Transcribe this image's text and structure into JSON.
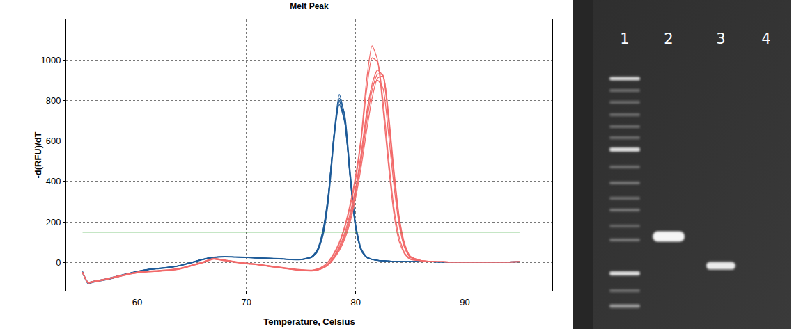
{
  "chart_data": {
    "type": "line",
    "title": "Melt Peak",
    "x_label": "Temperature, Celsius",
    "y_label": "-d(RFU)/dT",
    "x": [
      55,
      55.5,
      56,
      57,
      58,
      59,
      60,
      61,
      62,
      63,
      64,
      65,
      66,
      67,
      68,
      69,
      70,
      71,
      72,
      73,
      74,
      75,
      76,
      76.5,
      77,
      77.5,
      78,
      78.5,
      79,
      79.5,
      80,
      80.5,
      81,
      81.5,
      82,
      82.5,
      83,
      83.5,
      84,
      84.5,
      85,
      86,
      87,
      88,
      89,
      90,
      91,
      92,
      93,
      94,
      95
    ],
    "series": [
      {
        "color": "#1f5c99",
        "values": [
          -45,
          -100,
          -95,
          -85,
          -72,
          -58,
          -45,
          -35,
          -30,
          -24,
          -15,
          0,
          15,
          25,
          28,
          26,
          25,
          22,
          20,
          18,
          15,
          14,
          28,
          60,
          150,
          330,
          620,
          800,
          700,
          420,
          170,
          60,
          25,
          15,
          10,
          8,
          6,
          5,
          5,
          4,
          4,
          3,
          3,
          2,
          2,
          2,
          2,
          2,
          2,
          2,
          3
        ]
      },
      {
        "color": "#1f5c99",
        "values": [
          -50,
          -105,
          -98,
          -88,
          -75,
          -60,
          -47,
          -37,
          -31,
          -25,
          -16,
          -2,
          13,
          24,
          27,
          26,
          24,
          21,
          19,
          17,
          14,
          13,
          25,
          55,
          140,
          320,
          630,
          830,
          720,
          430,
          175,
          62,
          26,
          15,
          10,
          8,
          6,
          5,
          5,
          4,
          4,
          3,
          3,
          2,
          2,
          2,
          2,
          2,
          2,
          2,
          3
        ]
      },
      {
        "color": "#1f5c99",
        "values": [
          -48,
          -98,
          -93,
          -83,
          -70,
          -56,
          -44,
          -34,
          -29,
          -23,
          -14,
          1,
          16,
          26,
          29,
          27,
          26,
          23,
          21,
          19,
          16,
          15,
          30,
          65,
          160,
          340,
          610,
          780,
          690,
          410,
          165,
          58,
          24,
          14,
          10,
          8,
          6,
          5,
          5,
          4,
          4,
          3,
          3,
          2,
          2,
          2,
          2,
          2,
          2,
          2,
          3
        ]
      },
      {
        "color": "#1f5c99",
        "values": [
          -52,
          -102,
          -96,
          -86,
          -74,
          -59,
          -46,
          -36,
          -30,
          -24,
          -15,
          0,
          14,
          25,
          28,
          27,
          25,
          22,
          20,
          18,
          15,
          14,
          26,
          52,
          130,
          300,
          590,
          810,
          730,
          450,
          190,
          70,
          28,
          16,
          11,
          8,
          6,
          5,
          5,
          4,
          4,
          3,
          3,
          2,
          2,
          2,
          2,
          2,
          2,
          2,
          3
        ]
      },
      {
        "color": "#1f5c99",
        "values": [
          -47,
          -99,
          -94,
          -84,
          -71,
          -57,
          -44,
          -35,
          -29,
          -23,
          -14,
          1,
          15,
          25,
          28,
          26,
          25,
          22,
          20,
          18,
          15,
          14,
          29,
          62,
          155,
          335,
          625,
          795,
          695,
          415,
          168,
          59,
          25,
          15,
          10,
          8,
          6,
          5,
          5,
          4,
          4,
          3,
          3,
          2,
          2,
          2,
          2,
          2,
          2,
          2,
          3
        ]
      },
      {
        "color": "#f26b6b",
        "values": [
          -50,
          -100,
          -95,
          -85,
          -72,
          -60,
          -50,
          -45,
          -42,
          -38,
          -30,
          -15,
          0,
          18,
          10,
          2,
          -5,
          -10,
          -18,
          -25,
          -32,
          -38,
          -40,
          -33,
          -20,
          5,
          45,
          100,
          180,
          290,
          430,
          620,
          900,
          1070,
          1000,
          760,
          480,
          240,
          100,
          40,
          15,
          8,
          4,
          3,
          2,
          2,
          2,
          2,
          2,
          2,
          3
        ]
      },
      {
        "color": "#f26b6b",
        "values": [
          -48,
          -98,
          -93,
          -83,
          -70,
          -58,
          -48,
          -43,
          -40,
          -36,
          -28,
          -13,
          2,
          20,
          12,
          4,
          -3,
          -8,
          -16,
          -23,
          -30,
          -36,
          -38,
          -32,
          -20,
          2,
          40,
          92,
          170,
          275,
          410,
          600,
          850,
          1010,
          990,
          800,
          520,
          270,
          120,
          45,
          18,
          8,
          4,
          3,
          2,
          2,
          2,
          2,
          2,
          2,
          3
        ]
      },
      {
        "color": "#f26b6b",
        "values": [
          -52,
          -102,
          -97,
          -87,
          -74,
          -62,
          -52,
          -47,
          -44,
          -40,
          -32,
          -17,
          -2,
          16,
          8,
          0,
          -7,
          -12,
          -20,
          -27,
          -34,
          -40,
          -42,
          -38,
          -28,
          -8,
          25,
          70,
          135,
          230,
          360,
          520,
          720,
          880,
          950,
          920,
          700,
          420,
          200,
          80,
          28,
          9,
          4,
          3,
          2,
          2,
          2,
          2,
          2,
          2,
          3
        ]
      },
      {
        "color": "#f26b6b",
        "values": [
          -50,
          -101,
          -96,
          -86,
          -73,
          -61,
          -51,
          -46,
          -43,
          -39,
          -31,
          -16,
          -1,
          17,
          9,
          1,
          -6,
          -11,
          -19,
          -26,
          -33,
          -39,
          -41,
          -37,
          -28,
          -10,
          22,
          65,
          125,
          215,
          340,
          500,
          690,
          850,
          930,
          925,
          720,
          440,
          210,
          85,
          30,
          9,
          4,
          3,
          2,
          2,
          2,
          2,
          2,
          2,
          3
        ]
      },
      {
        "color": "#f26b6b",
        "values": [
          -49,
          -99,
          -94,
          -84,
          -71,
          -59,
          -49,
          -44,
          -41,
          -37,
          -29,
          -14,
          1,
          19,
          11,
          3,
          -4,
          -9,
          -17,
          -24,
          -31,
          -37,
          -40,
          -37,
          -29,
          -12,
          18,
          58,
          115,
          200,
          320,
          470,
          650,
          810,
          910,
          920,
          740,
          460,
          220,
          90,
          30,
          9,
          4,
          3,
          2,
          2,
          2,
          2,
          2,
          2,
          3
        ]
      },
      {
        "color": "#f26b6b",
        "values": [
          -51,
          -100,
          -95,
          -85,
          -72,
          -60,
          -50,
          -45,
          -42,
          -38,
          -30,
          -15,
          0,
          18,
          10,
          2,
          -5,
          -10,
          -18,
          -25,
          -32,
          -38,
          -40,
          -35,
          -25,
          -5,
          30,
          78,
          145,
          245,
          370,
          540,
          740,
          870,
          900,
          860,
          640,
          380,
          180,
          70,
          25,
          8,
          4,
          3,
          2,
          2,
          2,
          2,
          2,
          2,
          3
        ]
      },
      {
        "color": "#1a9a1a",
        "values": [
          150,
          150,
          150,
          150,
          150,
          150,
          150,
          150,
          150,
          150,
          150,
          150,
          150,
          150,
          150,
          150,
          150,
          150,
          150,
          150,
          150,
          150,
          150,
          150,
          150,
          150,
          150,
          150,
          150,
          150,
          150,
          150,
          150,
          150,
          150,
          150,
          150,
          150,
          150,
          150,
          150,
          150,
          150,
          150,
          150,
          150,
          150,
          150,
          150,
          150,
          150
        ]
      }
    ],
    "xlim": [
      53.5,
      98
    ],
    "ylim": [
      -140,
      1200
    ],
    "xticks": [
      60,
      70,
      80,
      90
    ],
    "yticks": [
      0,
      200,
      400,
      600,
      800,
      1000
    ],
    "grid": true
  },
  "gel": {
    "lanes": [
      "1",
      "2",
      "3",
      "4"
    ]
  }
}
